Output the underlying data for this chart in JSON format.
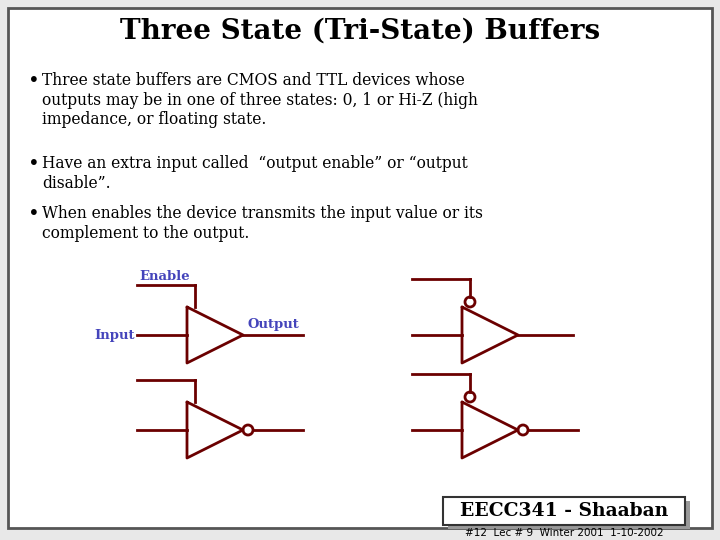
{
  "title": "Three State (Tri-State) Buffers",
  "title_fontsize": 20,
  "title_fontweight": "bold",
  "bg_color": "#e8e8e8",
  "border_color": "#555555",
  "text_color": "#000000",
  "label_color": "#4444bb",
  "gate_color": "#6b0000",
  "bullets": [
    "Three state buffers are CMOS and TTL devices whose\noutputs may be in one of three states: 0, 1 or Hi-Z (high\nimpedance, or floating state.",
    "Have an extra input called  “output enable” or “output\ndisable”.",
    "When enables the device transmits the input value or its\ncomplement to the output."
  ],
  "footer_text": "EECC341 - Shaaban",
  "footer_subtext": "#12  Lec # 9  Winter 2001  1-10-2002",
  "enable_label": "Enable",
  "input_label": "Input",
  "output_label": "Output"
}
